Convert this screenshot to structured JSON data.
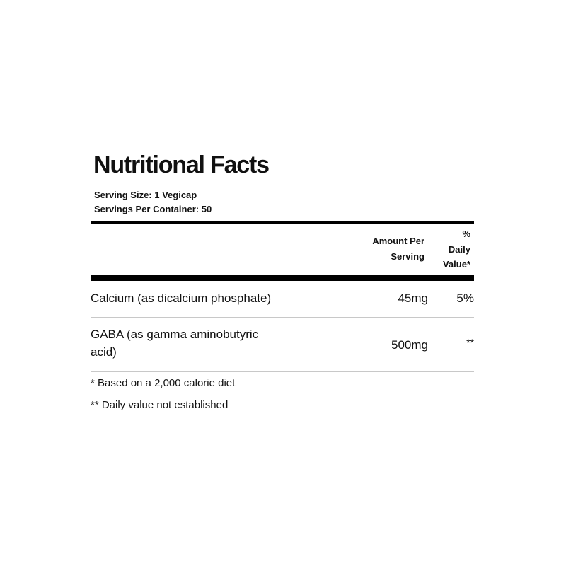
{
  "title": "Nutritional Facts",
  "serving_size": "Serving Size:  1 Vegicap",
  "servings_per_container": "Servings Per Container:  50",
  "header": {
    "amount_line1": "Amount Per",
    "amount_line2": "Serving",
    "dv_line1": "%",
    "dv_line2": "Daily",
    "dv_line3": "Value*"
  },
  "rows": [
    {
      "name": "Calcium (as dicalcium phosphate)",
      "amount": "45mg",
      "dv": "5%"
    },
    {
      "name_line1": "GABA (as gamma aminobutyric",
      "name_line2": "acid)",
      "amount": "500mg",
      "dv": "**"
    }
  ],
  "footnotes": [
    "* Based on a 2,000 calorie diet",
    "** Daily value not established"
  ]
}
